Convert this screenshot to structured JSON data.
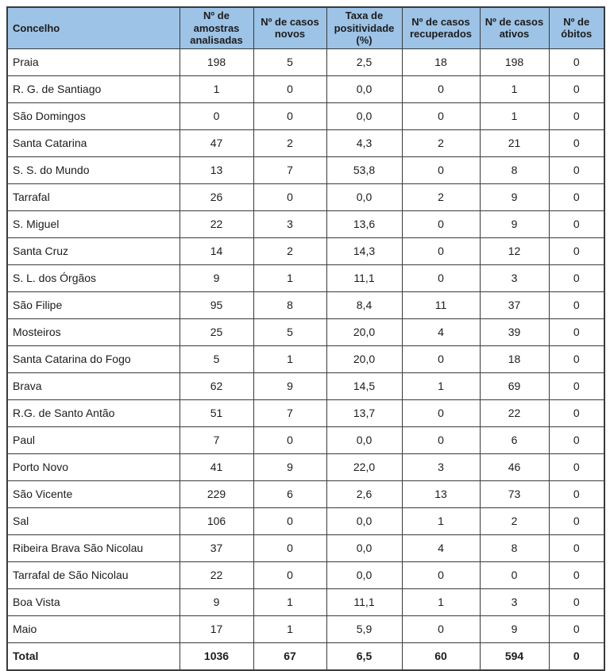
{
  "colors": {
    "header_bg": "#9dc3e6",
    "border": "#3a3a3a",
    "text": "#1c1c1c",
    "page_bg": "#ffffff"
  },
  "table": {
    "columns": [
      {
        "label": "Concelho"
      },
      {
        "label": "Nº de amostras analisadas"
      },
      {
        "label": "Nº de casos novos"
      },
      {
        "label": "Taxa de positividade (%)"
      },
      {
        "label": "Nº de casos recuperados"
      },
      {
        "label": "Nº de casos ativos"
      },
      {
        "label": "Nº de óbitos"
      }
    ],
    "rows": [
      {
        "concelho": "Praia",
        "values": [
          "198",
          "5",
          "2,5",
          "18",
          "198",
          "0"
        ]
      },
      {
        "concelho": "R. G. de Santiago",
        "values": [
          "1",
          "0",
          "0,0",
          "0",
          "1",
          "0"
        ]
      },
      {
        "concelho": "São Domingos",
        "values": [
          "0",
          "0",
          "0,0",
          "0",
          "1",
          "0"
        ]
      },
      {
        "concelho": "Santa Catarina",
        "values": [
          "47",
          "2",
          "4,3",
          "2",
          "21",
          "0"
        ]
      },
      {
        "concelho": "S. S. do Mundo",
        "values": [
          "13",
          "7",
          "53,8",
          "0",
          "8",
          "0"
        ]
      },
      {
        "concelho": "Tarrafal",
        "values": [
          "26",
          "0",
          "0,0",
          "2",
          "9",
          "0"
        ]
      },
      {
        "concelho": "S. Miguel",
        "values": [
          "22",
          "3",
          "13,6",
          "0",
          "9",
          "0"
        ]
      },
      {
        "concelho": "Santa Cruz",
        "values": [
          "14",
          "2",
          "14,3",
          "0",
          "12",
          "0"
        ]
      },
      {
        "concelho": "S. L. dos Órgãos",
        "values": [
          "9",
          "1",
          "11,1",
          "0",
          "3",
          "0"
        ]
      },
      {
        "concelho": "São Filipe",
        "values": [
          "95",
          "8",
          "8,4",
          "11",
          "37",
          "0"
        ]
      },
      {
        "concelho": "Mosteiros",
        "values": [
          "25",
          "5",
          "20,0",
          "4",
          "39",
          "0"
        ]
      },
      {
        "concelho": "Santa Catarina do Fogo",
        "values": [
          "5",
          "1",
          "20,0",
          "0",
          "18",
          "0"
        ]
      },
      {
        "concelho": "Brava",
        "values": [
          "62",
          "9",
          "14,5",
          "1",
          "69",
          "0"
        ]
      },
      {
        "concelho": "R.G. de Santo Antão",
        "values": [
          "51",
          "7",
          "13,7",
          "0",
          "22",
          "0"
        ]
      },
      {
        "concelho": "Paul",
        "values": [
          "7",
          "0",
          "0,0",
          "0",
          "6",
          "0"
        ]
      },
      {
        "concelho": "Porto Novo",
        "values": [
          "41",
          "9",
          "22,0",
          "3",
          "46",
          "0"
        ]
      },
      {
        "concelho": "São Vicente",
        "values": [
          "229",
          "6",
          "2,6",
          "13",
          "73",
          "0"
        ]
      },
      {
        "concelho": "Sal",
        "values": [
          "106",
          "0",
          "0,0",
          "1",
          "2",
          "0"
        ]
      },
      {
        "concelho": "Ribeira Brava São Nicolau",
        "values": [
          "37",
          "0",
          "0,0",
          "4",
          "8",
          "0"
        ]
      },
      {
        "concelho": "Tarrafal de São Nicolau",
        "values": [
          "22",
          "0",
          "0,0",
          "0",
          "0",
          "0"
        ]
      },
      {
        "concelho": "Boa Vista",
        "values": [
          "9",
          "1",
          "11,1",
          "1",
          "3",
          "0"
        ]
      },
      {
        "concelho": "Maio",
        "values": [
          "17",
          "1",
          "5,9",
          "0",
          "9",
          "0"
        ]
      }
    ],
    "total": {
      "label": "Total",
      "values": [
        "1036",
        "67",
        "6,5",
        "60",
        "594",
        "0"
      ]
    }
  }
}
